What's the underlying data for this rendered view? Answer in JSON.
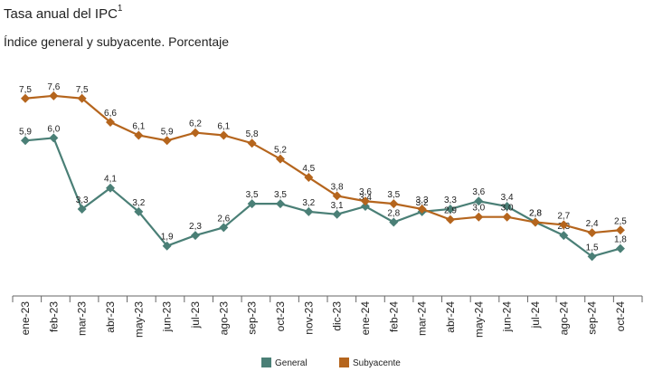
{
  "header": {
    "title": "Tasa anual del IPC",
    "title_sup": "1",
    "subtitle": "Índice general y subyacente. Porcentaje"
  },
  "chart_data": {
    "type": "line",
    "title": "Tasa anual del IPC",
    "subtitle": "Índice general y subyacente. Porcentaje",
    "categories": [
      "ene-23",
      "feb-23",
      "mar-23",
      "abr-23",
      "may-23",
      "jun-23",
      "jul-23",
      "ago-23",
      "sep-23",
      "oct-23",
      "nov-23",
      "dic-23",
      "ene-24",
      "feb-24",
      "mar-24",
      "abr-24",
      "may-24",
      "jun-24",
      "jul-24",
      "ago-24",
      "sep-24",
      "oct-24"
    ],
    "ylim": [
      0,
      8.5
    ],
    "grid": false,
    "legend": "bottom",
    "series": [
      {
        "name": "General",
        "color": "#4a7f76",
        "values": [
          5.9,
          6.0,
          3.3,
          4.1,
          3.2,
          1.9,
          2.3,
          2.6,
          3.5,
          3.5,
          3.2,
          3.1,
          3.4,
          2.8,
          3.2,
          3.3,
          3.6,
          3.4,
          2.8,
          2.3,
          1.5,
          1.8
        ]
      },
      {
        "name": "Subyacente",
        "color": "#b5651d",
        "values": [
          7.5,
          7.6,
          7.5,
          6.6,
          6.1,
          5.9,
          6.2,
          6.1,
          5.8,
          5.2,
          4.5,
          3.8,
          3.6,
          3.5,
          3.3,
          2.9,
          3.0,
          3.0,
          2.8,
          2.7,
          2.4,
          2.5
        ]
      }
    ]
  }
}
